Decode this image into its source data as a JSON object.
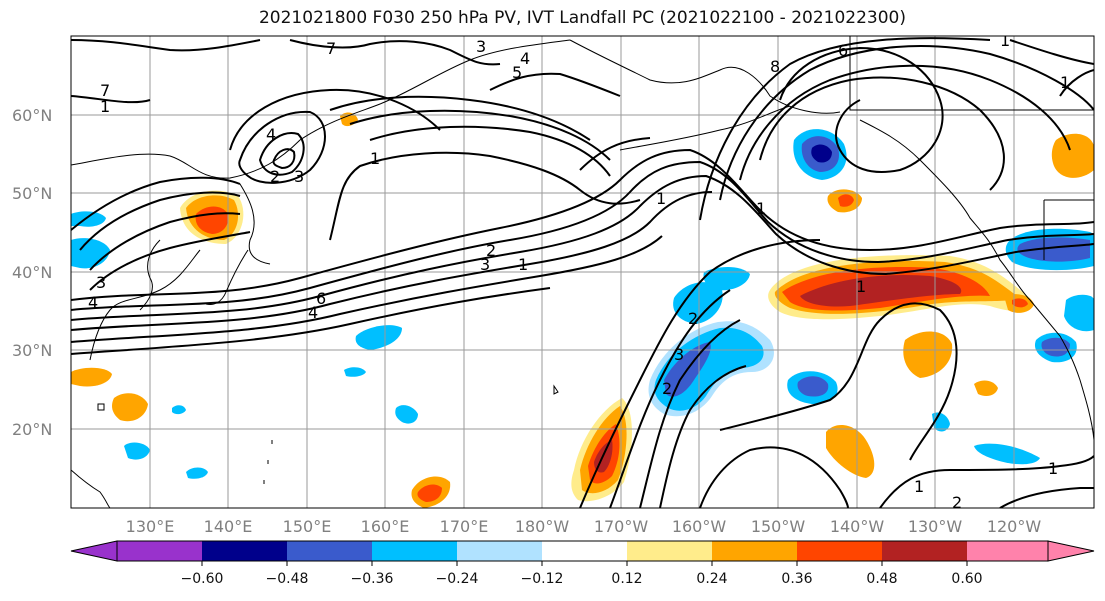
{
  "title": "2021021800 F030 250 hPa PV, IVT Landfall PC (2021022100 - 2021022300)",
  "lat_labels": [
    "60°N",
    "50°N",
    "40°N",
    "30°N",
    "20°N"
  ],
  "lon_labels": [
    "130°E",
    "140°E",
    "150°E",
    "160°E",
    "170°E",
    "180°W",
    "170°W",
    "160°W",
    "150°W",
    "140°W",
    "130°W",
    "120°W"
  ],
  "colorbar": {
    "colors": [
      "#9932cc",
      "#00008b",
      "#3a5bcc",
      "#00bfff",
      "#b0e2ff",
      "#ffffff",
      "#ffec8b",
      "#ffa500",
      "#ff4500",
      "#b22222",
      "#ff82ab"
    ],
    "tick_labels": [
      "−0.60",
      "−0.48",
      "−0.36",
      "−0.24",
      "−0.12",
      "0.12",
      "0.24",
      "0.36",
      "0.48",
      "0.60"
    ]
  },
  "contour_labels": [
    "7",
    "7",
    "3",
    "4",
    "5",
    "8",
    "6",
    "1",
    "1",
    "4",
    "2",
    "3",
    "1",
    "1",
    "2",
    "3",
    "1",
    "6",
    "4",
    "2",
    "3",
    "3",
    "2",
    "4",
    "1",
    "1",
    "2",
    "1",
    "1",
    "1"
  ],
  "icons": {
    "map": "map-icon"
  }
}
